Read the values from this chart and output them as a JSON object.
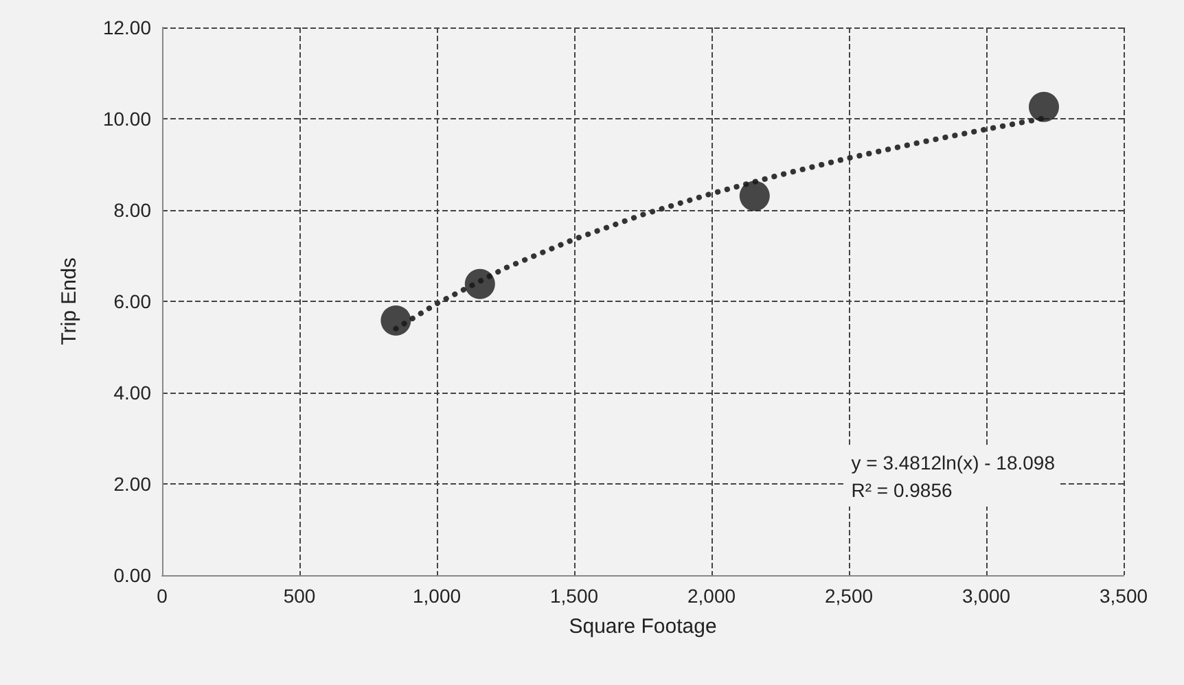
{
  "chart_data": {
    "type": "scatter",
    "xlabel": "Square Footage",
    "ylabel": "Trip Ends",
    "xlim": [
      0,
      3500
    ],
    "xticks": [
      {
        "value": 0,
        "label": "0"
      },
      {
        "value": 500,
        "label": "500"
      },
      {
        "value": 1000,
        "label": "1,000"
      },
      {
        "value": 1500,
        "label": "1,500"
      },
      {
        "value": 2000,
        "label": "2,000"
      },
      {
        "value": 2500,
        "label": "2,500"
      },
      {
        "value": 3000,
        "label": "3,000"
      },
      {
        "value": 3500,
        "label": "3,500"
      }
    ],
    "ylim": [
      0,
      12
    ],
    "yticks": [
      {
        "value": 0,
        "label": "0.00"
      },
      {
        "value": 2,
        "label": "2.00"
      },
      {
        "value": 4,
        "label": "4.00"
      },
      {
        "value": 6,
        "label": "6.00"
      },
      {
        "value": 8,
        "label": "8.00"
      },
      {
        "value": 10,
        "label": "10.00"
      },
      {
        "value": 12,
        "label": "12.00"
      }
    ],
    "grid": true,
    "series": [
      {
        "color": "#1a1a1a",
        "marker": "circle",
        "x": [
          851,
          1157,
          2157,
          3210
        ],
        "values": [
          5.58,
          6.38,
          8.31,
          10.26
        ]
      },
      {
        "type": "line",
        "color": "#333333",
        "marker": "none",
        "line_style": "dotted",
        "x": [
          851,
          1000,
          1250,
          1500,
          1750,
          2000,
          2250,
          2500,
          2750,
          3000,
          3210
        ],
        "values": [
          5.4,
          5.95,
          6.73,
          7.36,
          7.9,
          8.36,
          8.77,
          9.14,
          9.47,
          9.77,
          10.01
        ]
      }
    ],
    "annotations": [
      "y = 3.4812ln(x) - 18.098\nR² = 0.9856"
    ]
  }
}
